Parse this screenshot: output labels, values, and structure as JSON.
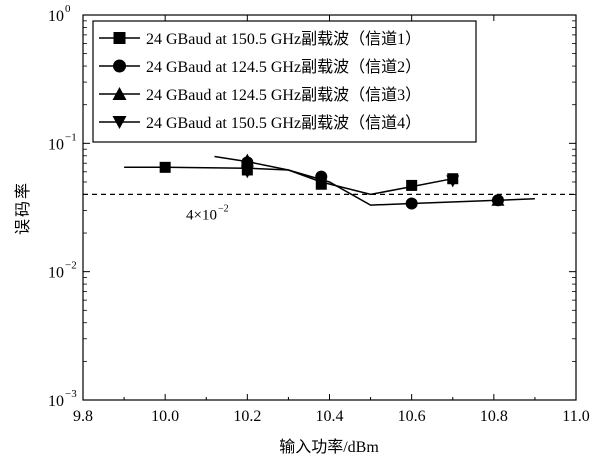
{
  "chart_data": {
    "type": "line",
    "title": "",
    "xlabel": "输入功率/dBm",
    "ylabel": "误码率",
    "xlim": [
      9.8,
      11.0
    ],
    "ylim": [
      0.001,
      1
    ],
    "yscale": "log",
    "grid": false,
    "legend_position": "top-left",
    "x_ticks": [
      "9.8",
      "10.0",
      "10.2",
      "10.4",
      "10.6",
      "10.8",
      "11.0"
    ],
    "y_ticks": [
      {
        "base": "10",
        "exp": "0",
        "value": 1
      },
      {
        "base": "10",
        "exp": "−1",
        "value": 0.1
      },
      {
        "base": "10",
        "exp": "−2",
        "value": 0.01
      },
      {
        "base": "10",
        "exp": "−3",
        "value": 0.001
      }
    ],
    "threshold": {
      "value": 0.04,
      "label_base": "4×10",
      "label_exp": "−2"
    },
    "series": [
      {
        "name": "24 GBaud at 150.5 GHz副载波（信道1）",
        "marker": "square",
        "markers": [
          [
            10.0,
            0.065
          ],
          [
            10.2,
            0.062
          ],
          [
            10.38,
            0.048
          ],
          [
            10.6,
            0.047
          ],
          [
            10.7,
            0.053
          ]
        ],
        "line": [
          [
            9.9,
            0.065
          ],
          [
            10.0,
            0.065
          ],
          [
            10.2,
            0.064
          ],
          [
            10.3,
            0.062
          ],
          [
            10.38,
            0.05
          ],
          [
            10.5,
            0.04
          ],
          [
            10.6,
            0.046
          ],
          [
            10.7,
            0.053
          ]
        ]
      },
      {
        "name": "24 GBaud at 124.5 GHz副载波（信道2）",
        "marker": "circle",
        "markers": [
          [
            10.2,
            0.071
          ],
          [
            10.38,
            0.055
          ],
          [
            10.6,
            0.034
          ],
          [
            10.81,
            0.036
          ]
        ],
        "line": [
          [
            10.12,
            0.079
          ],
          [
            10.2,
            0.072
          ],
          [
            10.3,
            0.062
          ],
          [
            10.4,
            0.05
          ],
          [
            10.5,
            0.033
          ],
          [
            10.6,
            0.034
          ],
          [
            10.81,
            0.036
          ],
          [
            10.9,
            0.037
          ]
        ]
      },
      {
        "name": "24 GBaud at 124.5 GHz副载波（信道3）",
        "marker": "triangle-up",
        "markers": [
          [
            10.2,
            0.074
          ],
          [
            10.81,
            0.036
          ]
        ],
        "line": []
      },
      {
        "name": "24 GBaud at 150.5 GHz副载波（信道4）",
        "marker": "triangle-down",
        "markers": [
          [
            10.2,
            0.06
          ],
          [
            10.7,
            0.051
          ]
        ],
        "line": []
      }
    ]
  }
}
